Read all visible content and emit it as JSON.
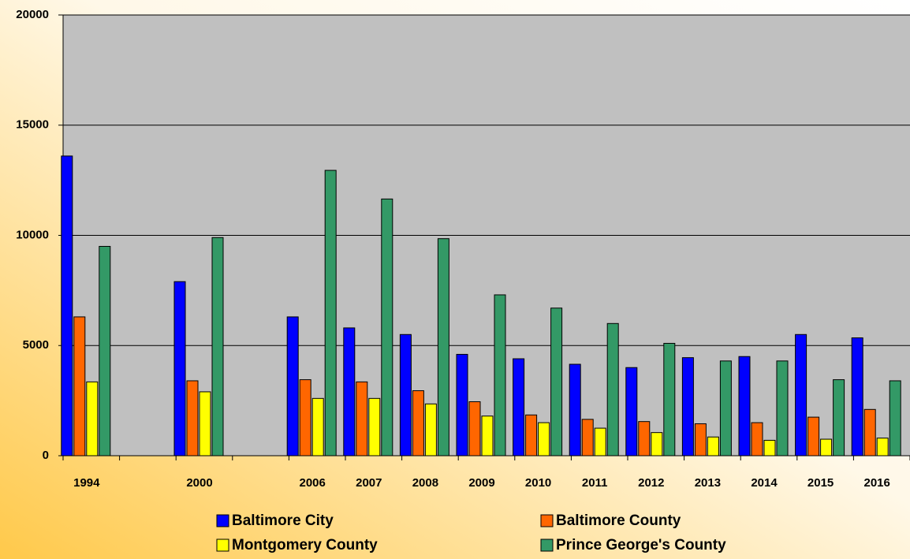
{
  "chart_data": {
    "type": "bar",
    "categories": [
      "1994",
      null,
      "2000",
      null,
      "2006",
      "2007",
      "2008",
      "2009",
      "2010",
      "2011",
      "2012",
      "2013",
      "2014",
      "2015",
      "2016"
    ],
    "series": [
      {
        "name": "Baltimore City",
        "color": "#0000ff",
        "values": [
          13600,
          null,
          7900,
          null,
          6300,
          5800,
          5500,
          4600,
          4400,
          4150,
          4000,
          4450,
          4500,
          5500,
          5350
        ]
      },
      {
        "name": "Baltimore County",
        "color": "#ff6600",
        "values": [
          6300,
          null,
          3400,
          null,
          3450,
          3350,
          2950,
          2450,
          1850,
          1650,
          1550,
          1450,
          1500,
          1750,
          2100
        ]
      },
      {
        "name": "Montgomery County",
        "color": "#ffff00",
        "values": [
          3350,
          null,
          2900,
          null,
          2600,
          2600,
          2350,
          1800,
          1500,
          1250,
          1050,
          850,
          700,
          750,
          800
        ]
      },
      {
        "name": "Prince George's County",
        "color": "#339966",
        "values": [
          9500,
          null,
          9900,
          null,
          12950,
          11650,
          9850,
          7300,
          6700,
          6000,
          5100,
          4300,
          4300,
          3450,
          3400
        ]
      }
    ],
    "ylim": [
      0,
      20000
    ],
    "yticks": [
      0,
      5000,
      10000,
      15000,
      20000
    ],
    "grid": true
  }
}
